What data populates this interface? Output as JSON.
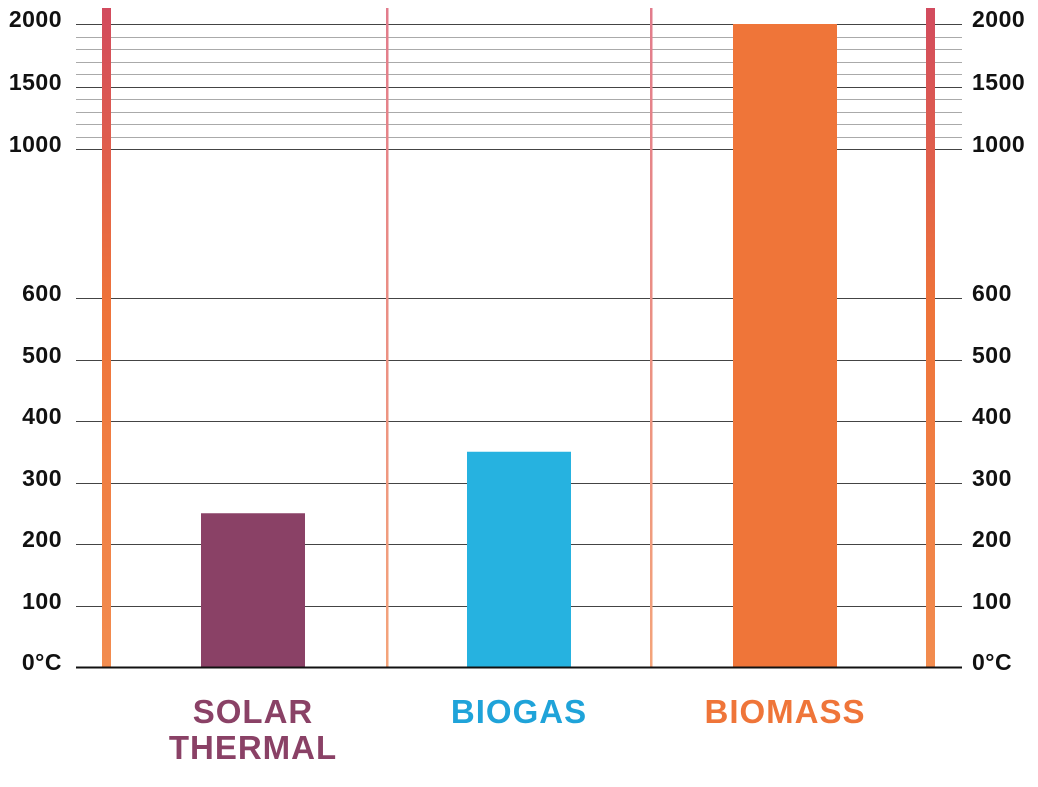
{
  "chart_data": {
    "type": "bar",
    "categories": [
      "SOLAR\nTHERMAL",
      "BIOGAS",
      "BIOMASS"
    ],
    "values": [
      250,
      350,
      2000
    ],
    "ylabel": "",
    "xlabel": "",
    "title": "",
    "ylim": [
      0,
      2000
    ],
    "y_scale": "piecewise: linear 0–600, compressed 600–1000, linear 1000–2000",
    "y_ticks": [
      {
        "value": 0,
        "label": "0°C"
      },
      {
        "value": 100,
        "label": "100"
      },
      {
        "value": 200,
        "label": "200"
      },
      {
        "value": 300,
        "label": "300"
      },
      {
        "value": 400,
        "label": "400"
      },
      {
        "value": 500,
        "label": "500"
      },
      {
        "value": 600,
        "label": "600"
      },
      {
        "value": 1000,
        "label": "1000"
      },
      {
        "value": 1500,
        "label": "1500"
      },
      {
        "value": 2000,
        "label": "2000"
      }
    ],
    "minor_gridlines": [
      1100,
      1200,
      1300,
      1400,
      1600,
      1700,
      1800,
      1900
    ],
    "grid": true,
    "tick_labels_on_both_sides": true,
    "colors": {
      "bars": [
        "#8a4166",
        "#26b2e0",
        "#ef7539"
      ],
      "category_labels": [
        "#8a4166",
        "#1fa3d9",
        "#ef7539"
      ],
      "side_bar_top": "#d24b5e",
      "side_bar_mid": "#ee7339",
      "side_bar_bottom": "#f28c4f",
      "divider_top": "#e27c8c",
      "divider_bottom": "#f4a47a",
      "major_grid": "#444444",
      "minor_grid": "#aaaaaa",
      "baseline": "#111111"
    }
  }
}
